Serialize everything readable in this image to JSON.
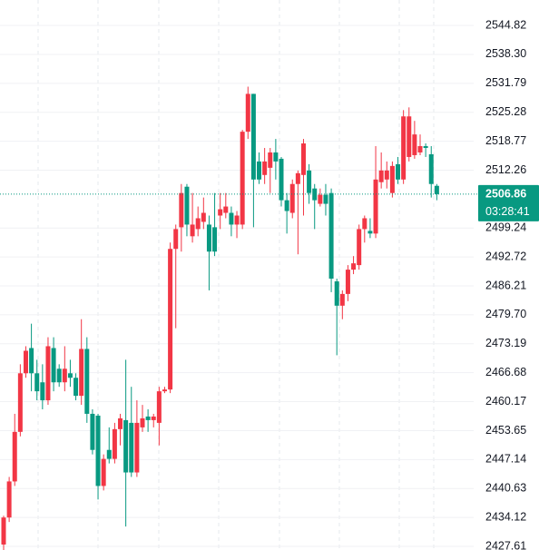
{
  "chart_data": {
    "type": "candlestick",
    "up_color": "#f23645",
    "down_color": "#089981",
    "ylim": [
      2426.79,
      2550.54
    ],
    "yticks": [
      2427.61,
      2434.12,
      2440.63,
      2447.14,
      2453.65,
      2460.17,
      2466.68,
      2473.19,
      {
        "value": 2479.7,
        "label": "2479.70"
      },
      2486.21,
      2492.72,
      2499.24,
      2512.26,
      2518.77,
      2525.28,
      2531.79,
      {
        "value": 2538.3,
        "label": "2538.30"
      },
      2544.82
    ],
    "grid": true,
    "last_price": 2506.86,
    "countdown": "03:28:41",
    "open": [
      2428.02,
      2434.1,
      2442.22,
      2453.37,
      2466.55,
      2472.23,
      2466.55,
      2464.52,
      2460.47,
      2472.23,
      2467.57,
      2464.52,
      2466.55,
      2465.54,
      2461.48,
      2472.03,
      2457.43,
      2457.02,
      2441.2,
      2449.31,
      2447.29,
      2453.98,
      2456.01,
      2455.4,
      2444.24,
      2454.38,
      2456.82,
      2456.01,
      2455.4,
      2462.5,
      2462.9,
      2494.54,
      2499.41,
      2508.53,
      2497.38,
      2499.0,
      2500.62,
      2500.01,
      2499.41,
      2502.04,
      2502.65,
      2502.65,
      2500.01,
      2500.01,
      2520.9,
      2529.42,
      2514.21,
      2511.17,
      2512.79,
      2516.24,
      2514.82,
      2505.49,
      2502.65,
      2509.14,
      2511.17,
      2512.18,
      2508.13,
      2504.68,
      2506.71,
      2507.11,
      2487.24,
      2481.76,
      2484.4,
      2489.87,
      2490.89,
      2499.0,
      2498.59,
      2497.99,
      2509.55,
      2510.15,
      2507.11,
      2513.6,
      2510.15,
      2515.22,
      2515.63,
      2516.24,
      2517.66,
      2515.83,
      2508.73
    ],
    "high": [
      2434.51,
      2443.23,
      2457.43,
      2468.58,
      2472.64,
      2477.71,
      2469.59,
      2468.58,
      2474.66,
      2474.66,
      2468.58,
      2472.64,
      2469.59,
      2466.55,
      2478.72,
      2474.66,
      2458.44,
      2457.43,
      2448.3,
      2454.38,
      2455.4,
      2457.43,
      2469.59,
      2463.51,
      2460.47,
      2459.45,
      2458.44,
      2457.43,
      2463.51,
      2463.51,
      2495.96,
      2500.01,
      2509.14,
      2509.14,
      2507.11,
      2504.07,
      2506.1,
      2502.04,
      2507.11,
      2507.11,
      2507.11,
      2504.07,
      2503.06,
      2521.31,
      2531.04,
      2529.42,
      2516.24,
      2517.25,
      2517.25,
      2519.28,
      2515.22,
      2507.11,
      2510.15,
      2512.18,
      2519.28,
      2513.6,
      2509.14,
      2508.13,
      2509.14,
      2508.13,
      2487.85,
      2485.21,
      2490.89,
      2492.92,
      2500.01,
      2502.04,
      2501.43,
      2517.66,
      2516.24,
      2514.21,
      2514.21,
      2515.22,
      2525.77,
      2526.38,
      2523.34,
      2520.29,
      2518.27,
      2517.66,
      2509.14
    ],
    "low": [
      2426.8,
      2433.09,
      2441.2,
      2452.36,
      2465.54,
      2462.5,
      2460.47,
      2458.44,
      2459.45,
      2462.5,
      2463.51,
      2462.5,
      2463.51,
      2460.47,
      2459.45,
      2455.4,
      2448.3,
      2438.16,
      2440.19,
      2446.27,
      2446.27,
      2450.33,
      2432.08,
      2443.23,
      2443.23,
      2453.37,
      2453.37,
      2454.38,
      2450.33,
      2462.09,
      2462.09,
      2476.69,
      2493.93,
      2497.38,
      2495.96,
      2497.38,
      2499.0,
      2485.21,
      2492.92,
      2499.0,
      2501.43,
      2497.38,
      2496.97,
      2499.0,
      2519.28,
      2499.41,
      2509.14,
      2509.14,
      2507.11,
      2510.15,
      2504.07,
      2497.99,
      2501.43,
      2493.32,
      2502.04,
      2504.68,
      2499.0,
      2504.07,
      2502.04,
      2484.8,
      2470.61,
      2478.72,
      2482.78,
      2488.86,
      2489.87,
      2495.96,
      2496.97,
      2496.97,
      2508.13,
      2508.13,
      2506.1,
      2509.14,
      2509.14,
      2514.21,
      2514.82,
      2515.63,
      2515.22,
      2506.1,
      2505.49
    ],
    "close": [
      2434.1,
      2442.22,
      2453.37,
      2466.55,
      2471.62,
      2466.55,
      2462.5,
      2460.47,
      2472.64,
      2464.52,
      2464.52,
      2467.57,
      2465.54,
      2461.48,
      2472.03,
      2457.43,
      2449.31,
      2441.2,
      2447.29,
      2447.29,
      2453.98,
      2456.41,
      2444.24,
      2444.24,
      2455.4,
      2456.41,
      2456.01,
      2456.82,
      2462.5,
      2462.9,
      2494.54,
      2499.0,
      2507.11,
      2500.01,
      2500.01,
      2501.43,
      2502.65,
      2493.93,
      2493.93,
      2503.46,
      2504.07,
      2500.01,
      2502.04,
      2520.9,
      2529.42,
      2510.15,
      2510.15,
      2514.21,
      2516.24,
      2514.21,
      2505.49,
      2503.06,
      2509.14,
      2511.57,
      2518.27,
      2507.11,
      2505.49,
      2506.71,
      2504.68,
      2487.85,
      2481.76,
      2484.4,
      2489.87,
      2491.29,
      2499.0,
      2501.43,
      2497.99,
      2510.15,
      2512.18,
      2512.18,
      2513.2,
      2510.15,
      2524.35,
      2524.35,
      2520.29,
      2517.66,
      2517.25,
      2509.14,
      2506.86
    ]
  }
}
